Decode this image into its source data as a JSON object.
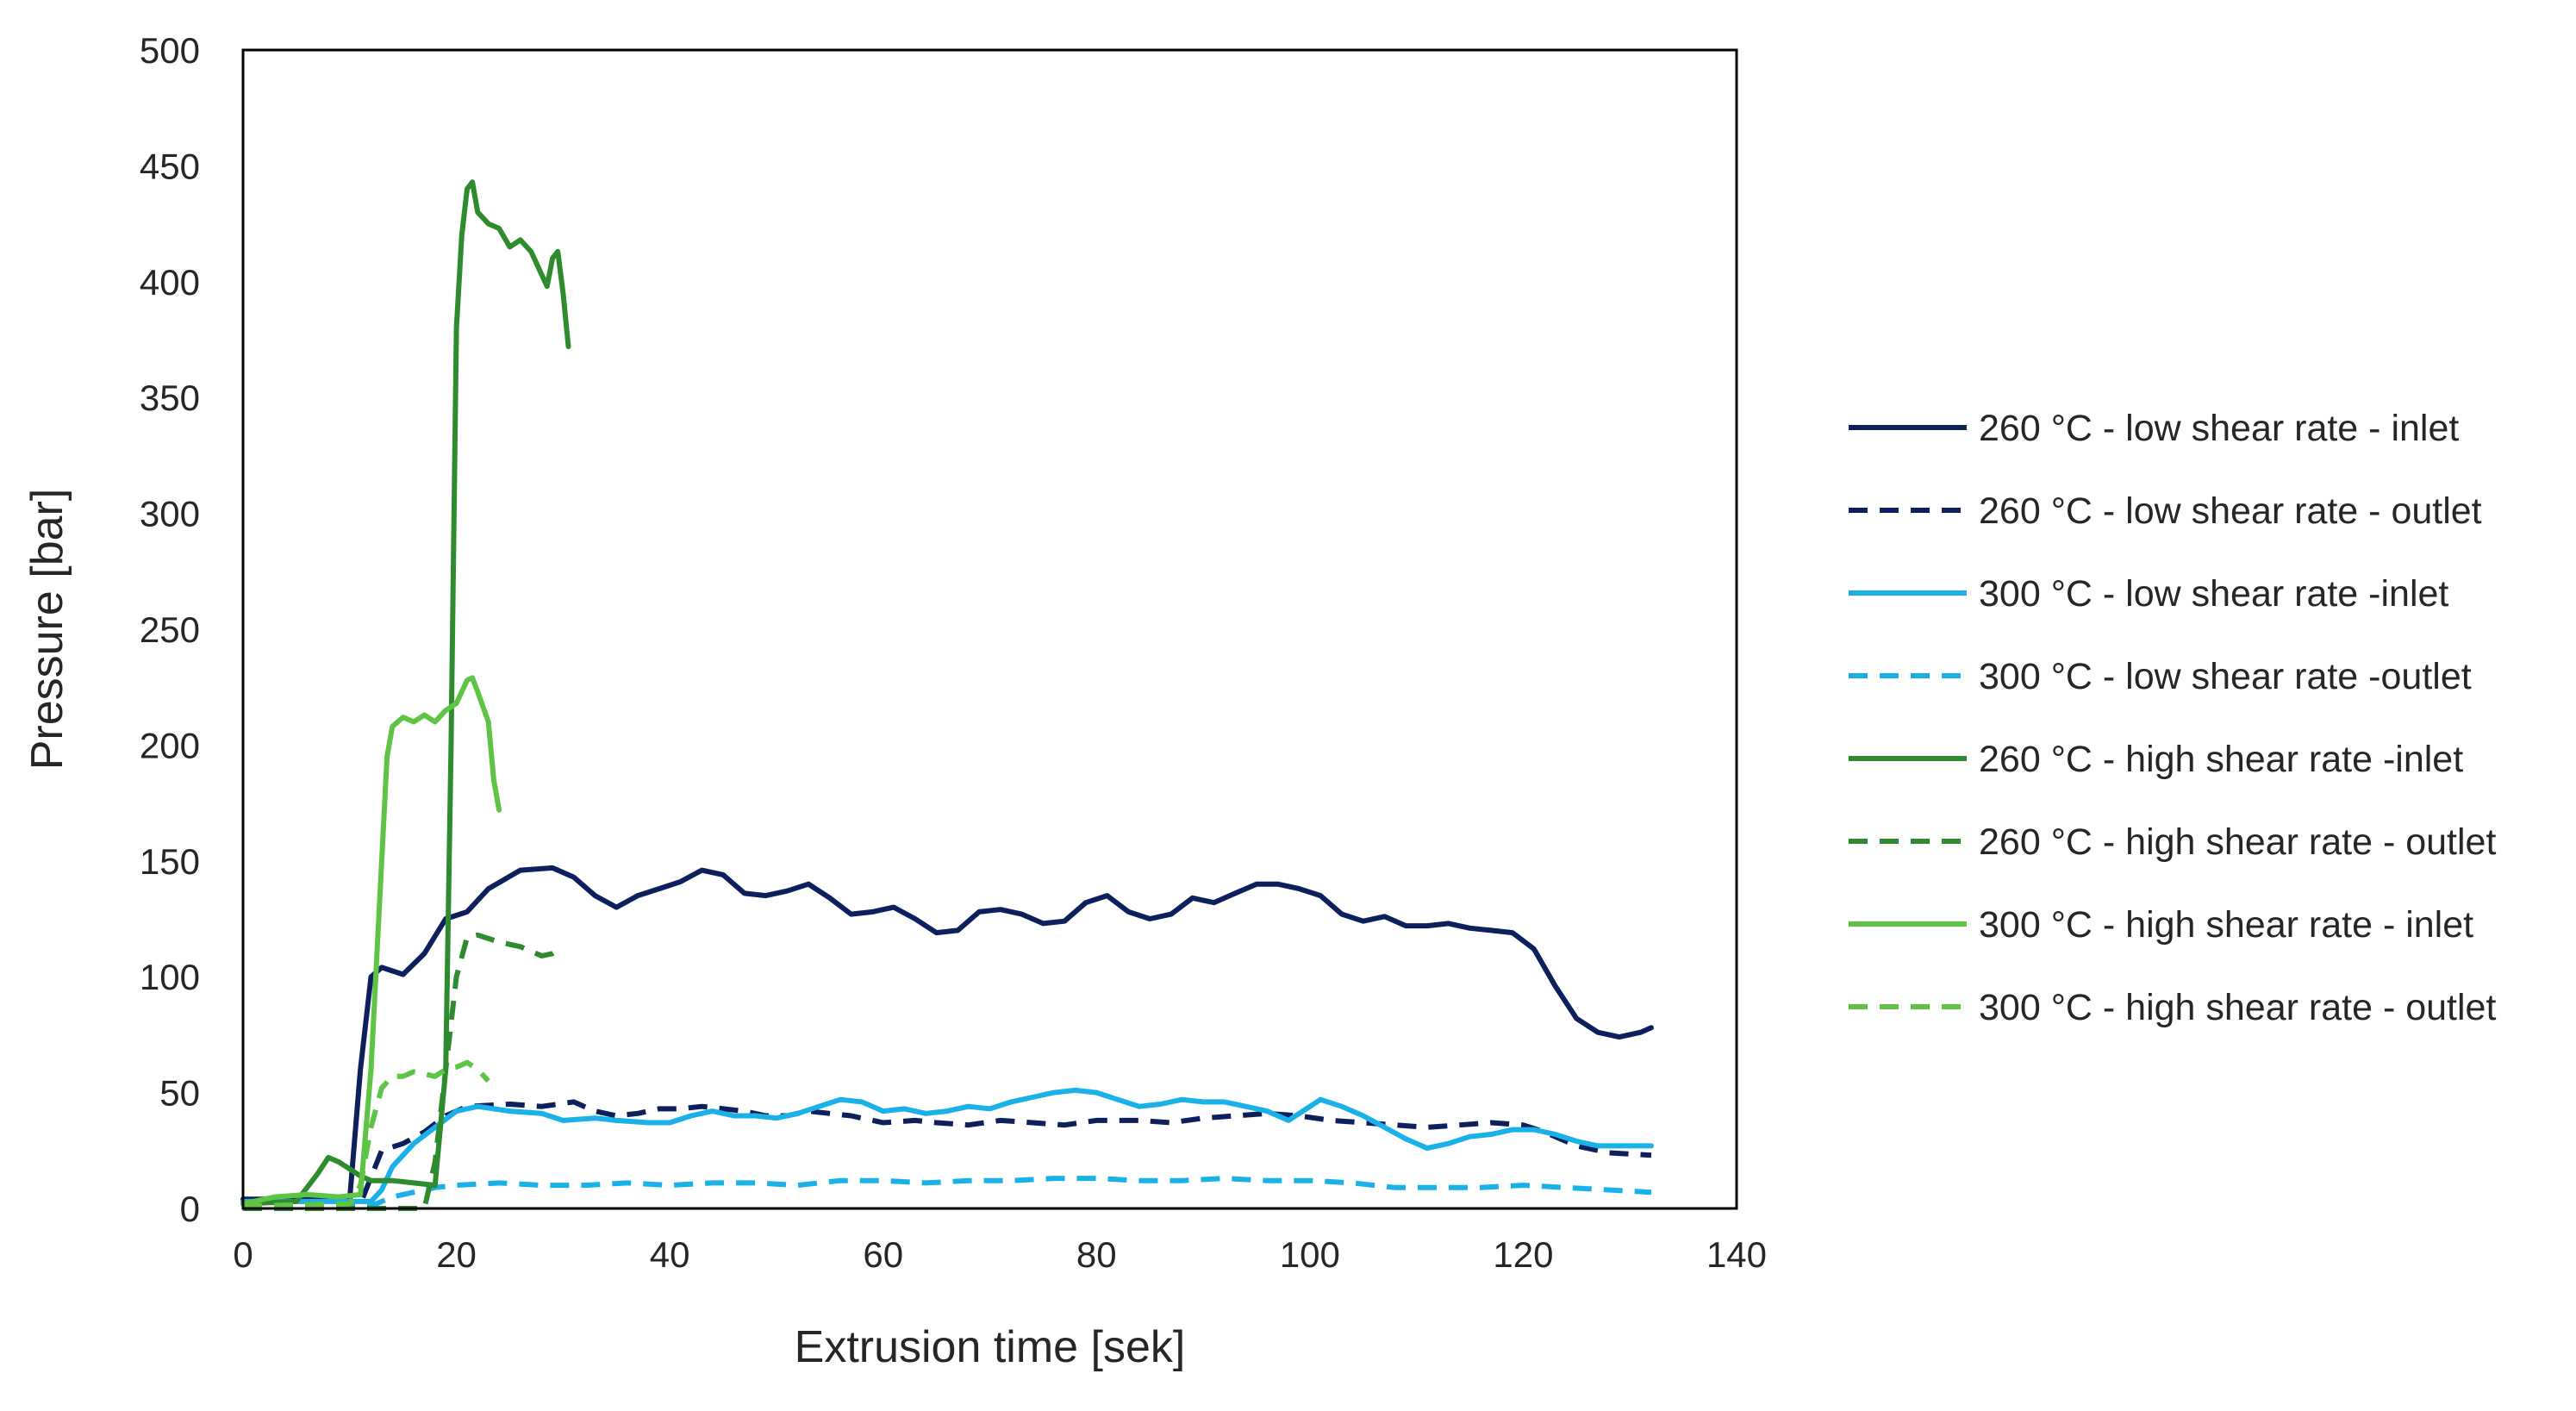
{
  "chart_data": {
    "type": "line",
    "title": "",
    "xlabel": "Extrusion time [sek]",
    "ylabel": "Pressure [bar]",
    "xlim": [
      0,
      140
    ],
    "ylim": [
      0,
      500
    ],
    "xticks": [
      0,
      20,
      40,
      60,
      80,
      100,
      120,
      140
    ],
    "yticks": [
      0,
      50,
      100,
      150,
      200,
      250,
      300,
      350,
      400,
      450,
      500
    ],
    "grid": false,
    "legend_position": "right",
    "series": [
      {
        "name": "260 °C - low shear rate - inlet",
        "color": "#0d1f5c",
        "dash": "solid",
        "points": [
          [
            0,
            4
          ],
          [
            10,
            4
          ],
          [
            11,
            60
          ],
          [
            12,
            100
          ],
          [
            13,
            104
          ],
          [
            15,
            101
          ],
          [
            17,
            110
          ],
          [
            19,
            125
          ],
          [
            21,
            128
          ],
          [
            23,
            138
          ],
          [
            26,
            146
          ],
          [
            29,
            147
          ],
          [
            31,
            143
          ],
          [
            33,
            135
          ],
          [
            35,
            130
          ],
          [
            37,
            135
          ],
          [
            39,
            138
          ],
          [
            41,
            141
          ],
          [
            43,
            146
          ],
          [
            45,
            144
          ],
          [
            47,
            136
          ],
          [
            49,
            135
          ],
          [
            51,
            137
          ],
          [
            53,
            140
          ],
          [
            55,
            134
          ],
          [
            57,
            127
          ],
          [
            59,
            128
          ],
          [
            61,
            130
          ],
          [
            63,
            125
          ],
          [
            65,
            119
          ],
          [
            67,
            120
          ],
          [
            69,
            128
          ],
          [
            71,
            129
          ],
          [
            73,
            127
          ],
          [
            75,
            123
          ],
          [
            77,
            124
          ],
          [
            79,
            132
          ],
          [
            81,
            135
          ],
          [
            83,
            128
          ],
          [
            85,
            125
          ],
          [
            87,
            127
          ],
          [
            89,
            134
          ],
          [
            91,
            132
          ],
          [
            93,
            136
          ],
          [
            95,
            140
          ],
          [
            97,
            140
          ],
          [
            99,
            138
          ],
          [
            101,
            135
          ],
          [
            103,
            127
          ],
          [
            105,
            124
          ],
          [
            107,
            126
          ],
          [
            109,
            122
          ],
          [
            111,
            122
          ],
          [
            113,
            123
          ],
          [
            115,
            121
          ],
          [
            117,
            120
          ],
          [
            119,
            119
          ],
          [
            121,
            112
          ],
          [
            123,
            96
          ],
          [
            125,
            82
          ],
          [
            127,
            76
          ],
          [
            129,
            74
          ],
          [
            131,
            76
          ],
          [
            132,
            78
          ]
        ]
      },
      {
        "name": "260 °C - low shear rate - outlet",
        "color": "#0d1f5c",
        "dash": "dashed",
        "points": [
          [
            0,
            2
          ],
          [
            11,
            2
          ],
          [
            13,
            25
          ],
          [
            15,
            28
          ],
          [
            17,
            33
          ],
          [
            19,
            40
          ],
          [
            21,
            44
          ],
          [
            25,
            45
          ],
          [
            28,
            44
          ],
          [
            31,
            46
          ],
          [
            33,
            42
          ],
          [
            35,
            40
          ],
          [
            37,
            41
          ],
          [
            39,
            43
          ],
          [
            41,
            43
          ],
          [
            43,
            44
          ],
          [
            45,
            43
          ],
          [
            47,
            42
          ],
          [
            49,
            40
          ],
          [
            51,
            40
          ],
          [
            53,
            42
          ],
          [
            55,
            41
          ],
          [
            57,
            40
          ],
          [
            60,
            37
          ],
          [
            63,
            38
          ],
          [
            65,
            37
          ],
          [
            68,
            36
          ],
          [
            71,
            38
          ],
          [
            74,
            37
          ],
          [
            77,
            36
          ],
          [
            80,
            38
          ],
          [
            84,
            38
          ],
          [
            87,
            37
          ],
          [
            90,
            39
          ],
          [
            93,
            40
          ],
          [
            96,
            41
          ],
          [
            99,
            40
          ],
          [
            102,
            38
          ],
          [
            105,
            37
          ],
          [
            108,
            36
          ],
          [
            111,
            35
          ],
          [
            114,
            36
          ],
          [
            117,
            37
          ],
          [
            120,
            36
          ],
          [
            122,
            33
          ],
          [
            125,
            27
          ],
          [
            128,
            24
          ],
          [
            132,
            23
          ]
        ]
      },
      {
        "name": "300 °C - low shear rate -inlet",
        "color": "#1ab1e8",
        "dash": "solid",
        "points": [
          [
            0,
            3
          ],
          [
            12,
            3
          ],
          [
            13,
            8
          ],
          [
            14,
            18
          ],
          [
            16,
            28
          ],
          [
            18,
            35
          ],
          [
            20,
            42
          ],
          [
            22,
            44
          ],
          [
            25,
            42
          ],
          [
            28,
            41
          ],
          [
            30,
            38
          ],
          [
            33,
            39
          ],
          [
            35,
            38
          ],
          [
            38,
            37
          ],
          [
            40,
            37
          ],
          [
            42,
            40
          ],
          [
            44,
            42
          ],
          [
            46,
            40
          ],
          [
            48,
            40
          ],
          [
            50,
            39
          ],
          [
            52,
            41
          ],
          [
            54,
            44
          ],
          [
            56,
            47
          ],
          [
            58,
            46
          ],
          [
            60,
            42
          ],
          [
            62,
            43
          ],
          [
            64,
            41
          ],
          [
            66,
            42
          ],
          [
            68,
            44
          ],
          [
            70,
            43
          ],
          [
            72,
            46
          ],
          [
            74,
            48
          ],
          [
            76,
            50
          ],
          [
            78,
            51
          ],
          [
            80,
            50
          ],
          [
            82,
            47
          ],
          [
            84,
            44
          ],
          [
            86,
            45
          ],
          [
            88,
            47
          ],
          [
            90,
            46
          ],
          [
            92,
            46
          ],
          [
            94,
            44
          ],
          [
            96,
            42
          ],
          [
            98,
            38
          ],
          [
            100,
            44
          ],
          [
            101,
            47
          ],
          [
            103,
            44
          ],
          [
            105,
            40
          ],
          [
            107,
            35
          ],
          [
            109,
            30
          ],
          [
            111,
            26
          ],
          [
            113,
            28
          ],
          [
            115,
            31
          ],
          [
            117,
            32
          ],
          [
            119,
            34
          ],
          [
            121,
            34
          ],
          [
            123,
            32
          ],
          [
            125,
            29
          ],
          [
            127,
            27
          ],
          [
            130,
            27
          ],
          [
            132,
            27
          ]
        ]
      },
      {
        "name": "300 °C - low shear rate -outlet",
        "color": "#1ab1e8",
        "dash": "dashed",
        "points": [
          [
            0,
            1
          ],
          [
            12,
            1
          ],
          [
            14,
            5
          ],
          [
            16,
            7
          ],
          [
            18,
            9
          ],
          [
            20,
            10
          ],
          [
            24,
            11
          ],
          [
            28,
            10
          ],
          [
            32,
            10
          ],
          [
            36,
            11
          ],
          [
            40,
            10
          ],
          [
            44,
            11
          ],
          [
            48,
            11
          ],
          [
            52,
            10
          ],
          [
            56,
            12
          ],
          [
            60,
            12
          ],
          [
            64,
            11
          ],
          [
            68,
            12
          ],
          [
            72,
            12
          ],
          [
            76,
            13
          ],
          [
            80,
            13
          ],
          [
            84,
            12
          ],
          [
            88,
            12
          ],
          [
            92,
            13
          ],
          [
            96,
            12
          ],
          [
            100,
            12
          ],
          [
            104,
            11
          ],
          [
            108,
            9
          ],
          [
            112,
            9
          ],
          [
            116,
            9
          ],
          [
            120,
            10
          ],
          [
            124,
            9
          ],
          [
            128,
            8
          ],
          [
            132,
            7
          ]
        ]
      },
      {
        "name": "260 °C - high shear rate -inlet",
        "color": "#2e8b2e",
        "dash": "solid",
        "points": [
          [
            0,
            2
          ],
          [
            5,
            3
          ],
          [
            7,
            15
          ],
          [
            8,
            22
          ],
          [
            9,
            20
          ],
          [
            10,
            17
          ],
          [
            11,
            14
          ],
          [
            12,
            12
          ],
          [
            14,
            12
          ],
          [
            16,
            11
          ],
          [
            18,
            10
          ],
          [
            19,
            60
          ],
          [
            19.5,
            200
          ],
          [
            20,
            380
          ],
          [
            20.5,
            420
          ],
          [
            21,
            440
          ],
          [
            21.5,
            443
          ],
          [
            22,
            430
          ],
          [
            23,
            425
          ],
          [
            24,
            423
          ],
          [
            25,
            415
          ],
          [
            26,
            418
          ],
          [
            27,
            413
          ],
          [
            28,
            403
          ],
          [
            28.5,
            398
          ],
          [
            29,
            410
          ],
          [
            29.5,
            413
          ],
          [
            30,
            395
          ],
          [
            30.5,
            372
          ]
        ]
      },
      {
        "name": "260 °C - high shear rate - outlet",
        "color": "#2e8b2e",
        "dash": "dashed",
        "points": [
          [
            0,
            0
          ],
          [
            17,
            0
          ],
          [
            18,
            20
          ],
          [
            19,
            60
          ],
          [
            20,
            100
          ],
          [
            21,
            117
          ],
          [
            22,
            118
          ],
          [
            24,
            115
          ],
          [
            26,
            113
          ],
          [
            28,
            109
          ],
          [
            29,
            110
          ],
          [
            30,
            113
          ]
        ]
      },
      {
        "name": "300 °C - high shear rate - inlet",
        "color": "#5fc445",
        "dash": "solid",
        "points": [
          [
            0,
            2
          ],
          [
            3,
            5
          ],
          [
            6,
            6
          ],
          [
            9,
            5
          ],
          [
            11,
            6
          ],
          [
            12,
            60
          ],
          [
            13,
            150
          ],
          [
            13.5,
            195
          ],
          [
            14,
            208
          ],
          [
            15,
            212
          ],
          [
            16,
            210
          ],
          [
            17,
            213
          ],
          [
            18,
            210
          ],
          [
            19,
            215
          ],
          [
            20,
            218
          ],
          [
            21,
            228
          ],
          [
            21.5,
            229
          ],
          [
            22,
            223
          ],
          [
            23,
            210
          ],
          [
            23.5,
            185
          ],
          [
            24,
            172
          ]
        ]
      },
      {
        "name": "300 °C - high shear rate - outlet",
        "color": "#5fc445",
        "dash": "dashed",
        "points": [
          [
            0,
            1
          ],
          [
            10,
            2
          ],
          [
            11,
            10
          ],
          [
            12,
            35
          ],
          [
            13,
            52
          ],
          [
            14,
            57
          ],
          [
            15,
            57
          ],
          [
            16,
            59
          ],
          [
            17,
            58
          ],
          [
            18,
            57
          ],
          [
            19,
            60
          ],
          [
            20,
            61
          ],
          [
            21,
            63
          ],
          [
            22,
            60
          ],
          [
            23,
            55
          ]
        ]
      }
    ]
  }
}
